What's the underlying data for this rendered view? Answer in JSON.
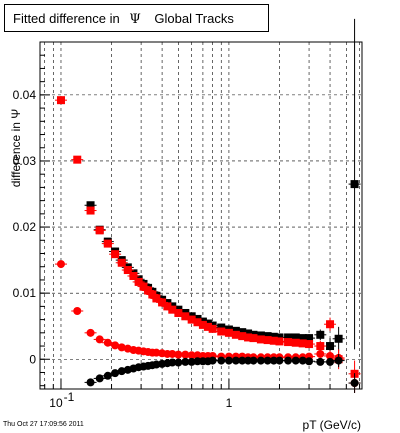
{
  "window": {
    "title": "Fitted difference in",
    "title_symbol": "Ψ",
    "title_suffix": "Global Tracks",
    "timestamp": "Thu Oct 27 17:09:56 2011"
  },
  "chart_data": {
    "type": "scatter",
    "title": "Fitted difference in Ψ   Global Tracks",
    "xlabel": "pT (GeV/c)",
    "ylabel": "difference in Ψ",
    "xscale": "log",
    "xlim": [
      0.075,
      6.2
    ],
    "ylim": [
      -0.0045,
      0.048
    ],
    "grid": true,
    "legend": "none",
    "x_ticks": [
      {
        "value": 0.1,
        "label": "10",
        "exponent": "-1"
      },
      {
        "value": 1,
        "label": "1",
        "exponent": ""
      }
    ],
    "y_ticks": [
      {
        "value": 0,
        "label": "0"
      },
      {
        "value": 0.01,
        "label": "0.01"
      },
      {
        "value": 0.02,
        "label": "0.02"
      },
      {
        "value": 0.03,
        "label": "0.03"
      },
      {
        "value": 0.04,
        "label": "0.04"
      }
    ],
    "series": [
      {
        "marker": "square",
        "color": "#000000",
        "x": [
          0.15,
          0.17,
          0.19,
          0.21,
          0.23,
          0.25,
          0.27,
          0.29,
          0.31,
          0.33,
          0.35,
          0.37,
          0.4,
          0.43,
          0.46,
          0.5,
          0.55,
          0.6,
          0.65,
          0.7,
          0.75,
          0.8,
          0.9,
          1.0,
          1.1,
          1.2,
          1.3,
          1.4,
          1.55,
          1.7,
          1.85,
          2.0,
          2.25,
          2.5,
          2.75,
          3.0,
          3.5,
          4.0,
          4.5,
          5.6
        ],
        "y": [
          0.0233,
          0.0196,
          0.0178,
          0.0163,
          0.015,
          0.0139,
          0.013,
          0.0121,
          0.0114,
          0.0108,
          0.0102,
          0.0096,
          0.009,
          0.0085,
          0.008,
          0.0075,
          0.007,
          0.0065,
          0.0061,
          0.0057,
          0.0054,
          0.0051,
          0.0048,
          0.0045,
          0.0043,
          0.0041,
          0.0039,
          0.0037,
          0.0036,
          0.0035,
          0.0034,
          0.0033,
          0.0033,
          0.0033,
          0.0032,
          0.0032,
          0.0037,
          0.002,
          0.0031,
          0.0265
        ],
        "yerr": [
          0.0004,
          0.0003,
          0.0002,
          0.0002,
          0.0002,
          0.0002,
          0.0002,
          0.0002,
          0.0002,
          0.0002,
          0.0002,
          0.0002,
          0.0002,
          0.0002,
          0.0002,
          0.0002,
          0.0002,
          0.0002,
          0.0002,
          0.0002,
          0.0002,
          0.0002,
          0.0002,
          0.0002,
          0.0002,
          0.0002,
          0.0002,
          0.0002,
          0.0003,
          0.0003,
          0.0003,
          0.0003,
          0.0004,
          0.0004,
          0.0005,
          0.0006,
          0.0008,
          0.0012,
          0.0018,
          0.025
        ]
      },
      {
        "marker": "square",
        "color": "#ff0000",
        "x": [
          0.1,
          0.125,
          0.15,
          0.17,
          0.19,
          0.21,
          0.23,
          0.25,
          0.27,
          0.29,
          0.31,
          0.33,
          0.35,
          0.37,
          0.4,
          0.43,
          0.46,
          0.5,
          0.55,
          0.6,
          0.65,
          0.7,
          0.75,
          0.8,
          0.9,
          1.0,
          1.1,
          1.2,
          1.3,
          1.4,
          1.55,
          1.7,
          1.85,
          2.0,
          2.25,
          2.5,
          2.75,
          3.0,
          3.5,
          4.0,
          4.5,
          5.6
        ],
        "y": [
          0.0392,
          0.0302,
          0.0225,
          0.0195,
          0.0175,
          0.0159,
          0.0146,
          0.0135,
          0.0126,
          0.0117,
          0.011,
          0.0104,
          0.0098,
          0.0092,
          0.0086,
          0.008,
          0.0075,
          0.007,
          0.0065,
          0.006,
          0.0056,
          0.0052,
          0.0049,
          0.0046,
          0.0042,
          0.004,
          0.0037,
          0.0035,
          0.0033,
          0.0032,
          0.003,
          0.0029,
          0.0028,
          0.0027,
          0.0026,
          0.0025,
          0.0024,
          0.0023,
          0.002,
          0.0053,
          0.0,
          -0.0022
        ],
        "yerr": [
          0.0004,
          0.0003,
          0.0003,
          0.0002,
          0.0002,
          0.0002,
          0.0002,
          0.0002,
          0.0002,
          0.0002,
          0.0002,
          0.0002,
          0.0002,
          0.0002,
          0.0002,
          0.0002,
          0.0002,
          0.0002,
          0.0002,
          0.0002,
          0.0002,
          0.0002,
          0.0002,
          0.0002,
          0.0002,
          0.0002,
          0.0002,
          0.0002,
          0.0002,
          0.0002,
          0.0003,
          0.0003,
          0.0003,
          0.0003,
          0.0004,
          0.0004,
          0.0005,
          0.0006,
          0.0008,
          0.001,
          0.0015,
          0.002
        ]
      },
      {
        "marker": "circle",
        "color": "#ff0000",
        "x": [
          0.1,
          0.125,
          0.15,
          0.17,
          0.19,
          0.21,
          0.23,
          0.25,
          0.27,
          0.29,
          0.31,
          0.33,
          0.35,
          0.37,
          0.4,
          0.43,
          0.46,
          0.5,
          0.55,
          0.6,
          0.65,
          0.7,
          0.75,
          0.8,
          0.9,
          1.0,
          1.1,
          1.2,
          1.3,
          1.4,
          1.55,
          1.7,
          1.85,
          2.0,
          2.25,
          2.5,
          2.75,
          3.0,
          3.5,
          4.0,
          4.5,
          5.6
        ],
        "y": [
          0.0144,
          0.0073,
          0.004,
          0.003,
          0.0025,
          0.0021,
          0.0018,
          0.0016,
          0.0014,
          0.0013,
          0.0012,
          0.0011,
          0.001,
          0.001,
          0.0009,
          0.0008,
          0.0008,
          0.0007,
          0.0007,
          0.0006,
          0.0006,
          0.0005,
          0.0005,
          0.0005,
          0.0004,
          0.0004,
          0.0004,
          0.0004,
          0.0003,
          0.0003,
          0.0003,
          0.0003,
          0.0003,
          0.0003,
          0.0003,
          0.0003,
          0.0003,
          0.0004,
          0.0008,
          0.0005,
          0.0002,
          -0.0036
        ],
        "yerr": [
          0.0003,
          0.0002,
          0.0002,
          0.0002,
          0.0001,
          0.0001,
          0.0001,
          0.0001,
          0.0001,
          0.0001,
          0.0001,
          0.0001,
          0.0001,
          0.0001,
          0.0001,
          0.0001,
          0.0001,
          0.0001,
          0.0001,
          0.0001,
          0.0001,
          0.0001,
          0.0001,
          0.0001,
          0.0001,
          0.0001,
          0.0001,
          0.0001,
          0.0001,
          0.0001,
          0.0001,
          0.0001,
          0.0002,
          0.0002,
          0.0002,
          0.0002,
          0.0003,
          0.0003,
          0.0005,
          0.0008,
          0.0012,
          0.0015
        ]
      },
      {
        "marker": "circle",
        "color": "#000000",
        "x": [
          0.15,
          0.17,
          0.19,
          0.21,
          0.23,
          0.25,
          0.27,
          0.29,
          0.31,
          0.33,
          0.35,
          0.37,
          0.4,
          0.43,
          0.46,
          0.5,
          0.55,
          0.6,
          0.65,
          0.7,
          0.75,
          0.8,
          0.9,
          1.0,
          1.1,
          1.2,
          1.3,
          1.4,
          1.55,
          1.7,
          1.85,
          2.0,
          2.25,
          2.5,
          2.75,
          3.0,
          3.5,
          4.0,
          4.5,
          5.6
        ],
        "y": [
          -0.0035,
          -0.0029,
          -0.0025,
          -0.0021,
          -0.0018,
          -0.0016,
          -0.0014,
          -0.0012,
          -0.0011,
          -0.001,
          -0.0009,
          -0.0008,
          -0.0007,
          -0.0006,
          -0.0005,
          -0.0005,
          -0.0004,
          -0.0004,
          -0.0003,
          -0.0003,
          -0.0003,
          -0.0002,
          -0.0002,
          -0.0002,
          -0.0002,
          -0.0002,
          -0.0002,
          -0.0002,
          -0.0002,
          -0.0002,
          -0.0002,
          -0.0002,
          -0.0002,
          -0.0002,
          -0.0002,
          -0.0003,
          -0.0004,
          -0.0004,
          -0.0002,
          -0.0036
        ],
        "yerr": [
          0.0003,
          0.0002,
          0.0002,
          0.0002,
          0.0001,
          0.0001,
          0.0001,
          0.0001,
          0.0001,
          0.0001,
          0.0001,
          0.0001,
          0.0001,
          0.0001,
          0.0001,
          0.0001,
          0.0001,
          0.0001,
          0.0001,
          0.0001,
          0.0001,
          0.0001,
          0.0001,
          0.0001,
          0.0001,
          0.0001,
          0.0001,
          0.0001,
          0.0001,
          0.0001,
          0.0001,
          0.0002,
          0.0002,
          0.0002,
          0.0002,
          0.0003,
          0.0004,
          0.0006,
          0.001,
          0.0015
        ]
      }
    ]
  }
}
